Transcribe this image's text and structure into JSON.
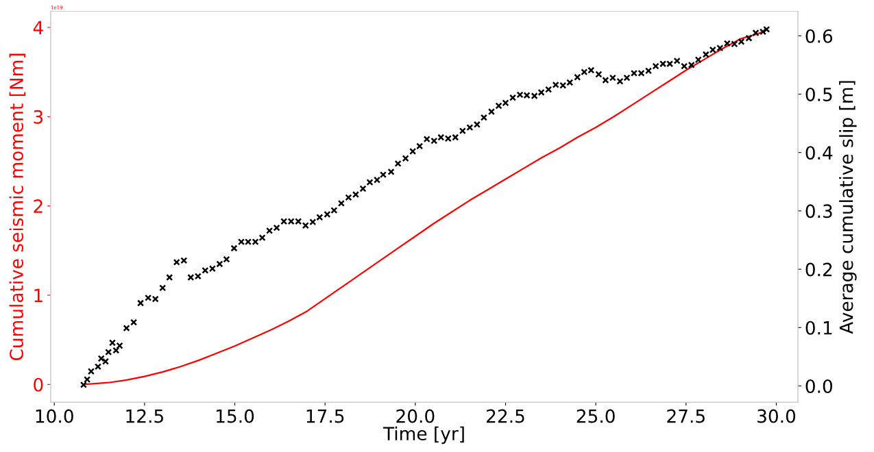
{
  "chart_data": {
    "type": "line",
    "xlabel": "Time [yr]",
    "ylabel": "Cumulative seismic moment [Nm]",
    "y2label": "Average cumulative slip [m]",
    "annotations": [
      "1e19"
    ],
    "xlim": [
      9.9,
      30.6
    ],
    "xticks": [
      {
        "value": 10,
        "label": "10.0"
      },
      12.5,
      {
        "value": 15,
        "label": "15.0"
      },
      17.5,
      {
        "value": 20,
        "label": "20.0"
      },
      22.5,
      {
        "value": 25,
        "label": "25.0"
      },
      27.5,
      {
        "value": 30,
        "label": "30.0"
      }
    ],
    "ylim": [
      -0.2,
      4.18
    ],
    "yticks": [
      0,
      1,
      2,
      3,
      4
    ],
    "y2lim": [
      -0.028,
      0.642
    ],
    "y2ticks": [
      {
        "value": 0,
        "label": "0.0"
      },
      0.1,
      0.2,
      0.3,
      0.4,
      0.5,
      0.6
    ],
    "grid": false,
    "series": [
      {
        "color": "#ff0000",
        "marker": "none",
        "line_style": "solid",
        "x": [
          10.81,
          11.5,
          12,
          12.5,
          13,
          13.5,
          14,
          14.5,
          15,
          15.5,
          16,
          16.5,
          17,
          17.5,
          18,
          18.5,
          19,
          19.5,
          20,
          20.5,
          21,
          21.5,
          22,
          22.5,
          23,
          23.5,
          24,
          24.5,
          25,
          25.5,
          26,
          26.5,
          27,
          27.5,
          28,
          28.5,
          29,
          29.5,
          29.73
        ],
        "values": [
          0,
          0.02,
          0.05,
          0.09,
          0.14,
          0.2,
          0.27,
          0.35,
          0.43,
          0.52,
          0.61,
          0.71,
          0.82,
          0.96,
          1.1,
          1.24,
          1.38,
          1.52,
          1.66,
          1.8,
          1.93,
          2.06,
          2.18,
          2.3,
          2.42,
          2.54,
          2.65,
          2.77,
          2.88,
          3.0,
          3.13,
          3.26,
          3.39,
          3.52,
          3.64,
          3.76,
          3.87,
          3.93,
          3.97
        ]
      },
      {
        "type": "scatter",
        "axis": "y2",
        "color": "#000000",
        "marker": "cross",
        "x": [
          10.81,
          10.91,
          11.02,
          11.21,
          11.3,
          11.42,
          11.5,
          11.61,
          11.71,
          11.81,
          12.0,
          12.2,
          12.39,
          12.6,
          12.8,
          13.0,
          13.19,
          13.39,
          13.59,
          13.78,
          13.98,
          14.18,
          14.38,
          14.58,
          14.77,
          14.98,
          15.18,
          15.37,
          15.57,
          15.76,
          15.96,
          16.16,
          16.36,
          16.56,
          16.76,
          16.96,
          17.16,
          17.35,
          17.56,
          17.75,
          17.95,
          18.15,
          18.35,
          18.55,
          18.74,
          18.94,
          19.11,
          19.33,
          19.52,
          19.73,
          19.93,
          20.12,
          20.32,
          20.52,
          20.71,
          20.91,
          21.11,
          21.31,
          21.51,
          21.71,
          21.9,
          22.11,
          22.31,
          22.5,
          22.7,
          22.9,
          23.09,
          23.3,
          23.49,
          23.69,
          23.89,
          24.09,
          24.28,
          24.49,
          24.68,
          24.87,
          25.08,
          25.27,
          25.47,
          25.67,
          25.86,
          26.06,
          26.26,
          26.46,
          26.66,
          26.86,
          27.05,
          27.25,
          27.45,
          27.65,
          27.84,
          28.05,
          28.24,
          28.44,
          28.64,
          28.84,
          29.03,
          29.24,
          29.43,
          29.63,
          29.73
        ],
        "values": [
          0.002,
          0.011,
          0.025,
          0.033,
          0.047,
          0.042,
          0.058,
          0.074,
          0.061,
          0.069,
          0.099,
          0.109,
          0.142,
          0.151,
          0.149,
          0.168,
          0.186,
          0.212,
          0.215,
          0.186,
          0.188,
          0.198,
          0.201,
          0.209,
          0.217,
          0.236,
          0.247,
          0.247,
          0.247,
          0.254,
          0.266,
          0.271,
          0.282,
          0.282,
          0.282,
          0.275,
          0.281,
          0.289,
          0.294,
          0.301,
          0.313,
          0.323,
          0.328,
          0.338,
          0.349,
          0.353,
          0.362,
          0.367,
          0.381,
          0.39,
          0.402,
          0.411,
          0.423,
          0.42,
          0.426,
          0.424,
          0.426,
          0.437,
          0.443,
          0.448,
          0.46,
          0.47,
          0.48,
          0.485,
          0.494,
          0.499,
          0.498,
          0.497,
          0.503,
          0.508,
          0.516,
          0.515,
          0.52,
          0.529,
          0.538,
          0.541,
          0.534,
          0.524,
          0.528,
          0.522,
          0.528,
          0.536,
          0.536,
          0.54,
          0.548,
          0.552,
          0.552,
          0.557,
          0.548,
          0.55,
          0.559,
          0.568,
          0.576,
          0.579,
          0.587,
          0.586,
          0.59,
          0.596,
          0.605,
          0.607,
          0.611
        ]
      }
    ]
  }
}
